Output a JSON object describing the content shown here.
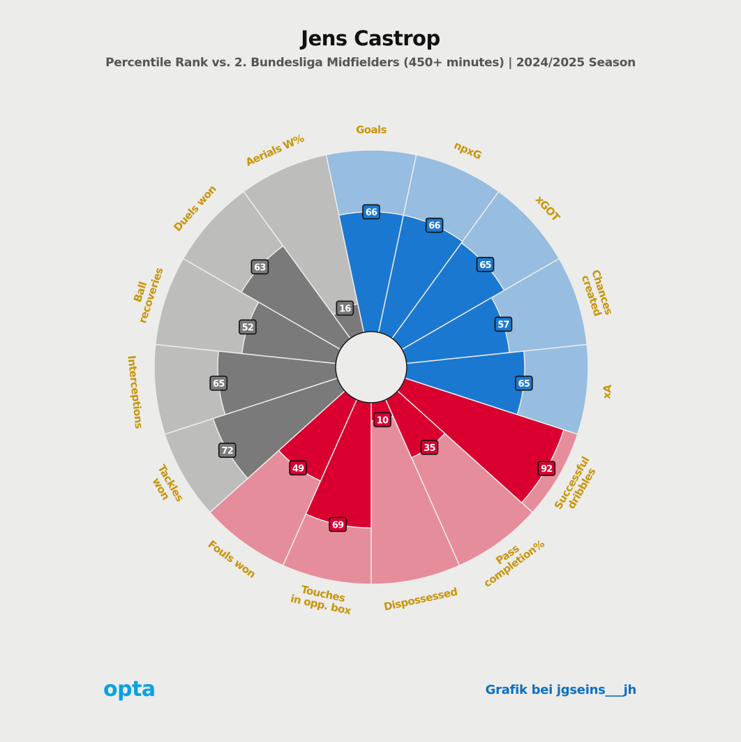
{
  "title": "Jens Castrop",
  "subtitle": "Percentile Rank vs. 2. Bundesliga Midfielders (450+ minutes) | 2024/2025 Season",
  "logo": "opta",
  "credit": "Grafik bei jgseins___jh",
  "colors": {
    "attack_dark": "#1b78d0",
    "attack_light": "#97bde0",
    "possession_dark": "#d90030",
    "possession_light": "#e68d9c",
    "defense_dark": "#7a7a7a",
    "defense_light": "#bdbdbb",
    "label": "#c8960c",
    "background": "#ececea"
  },
  "chart_data": {
    "type": "polar-bar",
    "scale_max": 100,
    "categories": [
      {
        "label": [
          "Goals"
        ],
        "value": 66,
        "group": "attack"
      },
      {
        "label": [
          "npxG"
        ],
        "value": 66,
        "group": "attack"
      },
      {
        "label": [
          "xGOT"
        ],
        "value": 65,
        "group": "attack"
      },
      {
        "label": [
          "Chances",
          "created"
        ],
        "value": 57,
        "group": "attack"
      },
      {
        "label": [
          "xA"
        ],
        "value": 65,
        "group": "attack"
      },
      {
        "label": [
          "Successful",
          "dribbles"
        ],
        "value": 92,
        "group": "possession"
      },
      {
        "label": [
          "Pass",
          "completion%"
        ],
        "value": 35,
        "group": "possession"
      },
      {
        "label": [
          "Dispossessed"
        ],
        "value": 10,
        "group": "possession"
      },
      {
        "label": [
          "Touches",
          "in opp. box"
        ],
        "value": 69,
        "group": "possession"
      },
      {
        "label": [
          "Fouls won"
        ],
        "value": 49,
        "group": "possession"
      },
      {
        "label": [
          "Tackles",
          "won"
        ],
        "value": 72,
        "group": "defense"
      },
      {
        "label": [
          "Interceptions"
        ],
        "value": 65,
        "group": "defense"
      },
      {
        "label": [
          "Ball",
          "recoveries"
        ],
        "value": 52,
        "group": "defense"
      },
      {
        "label": [
          "Duels won"
        ],
        "value": 63,
        "group": "defense"
      },
      {
        "label": [
          "Aerials W%"
        ],
        "value": 16,
        "group": "defense"
      }
    ]
  }
}
